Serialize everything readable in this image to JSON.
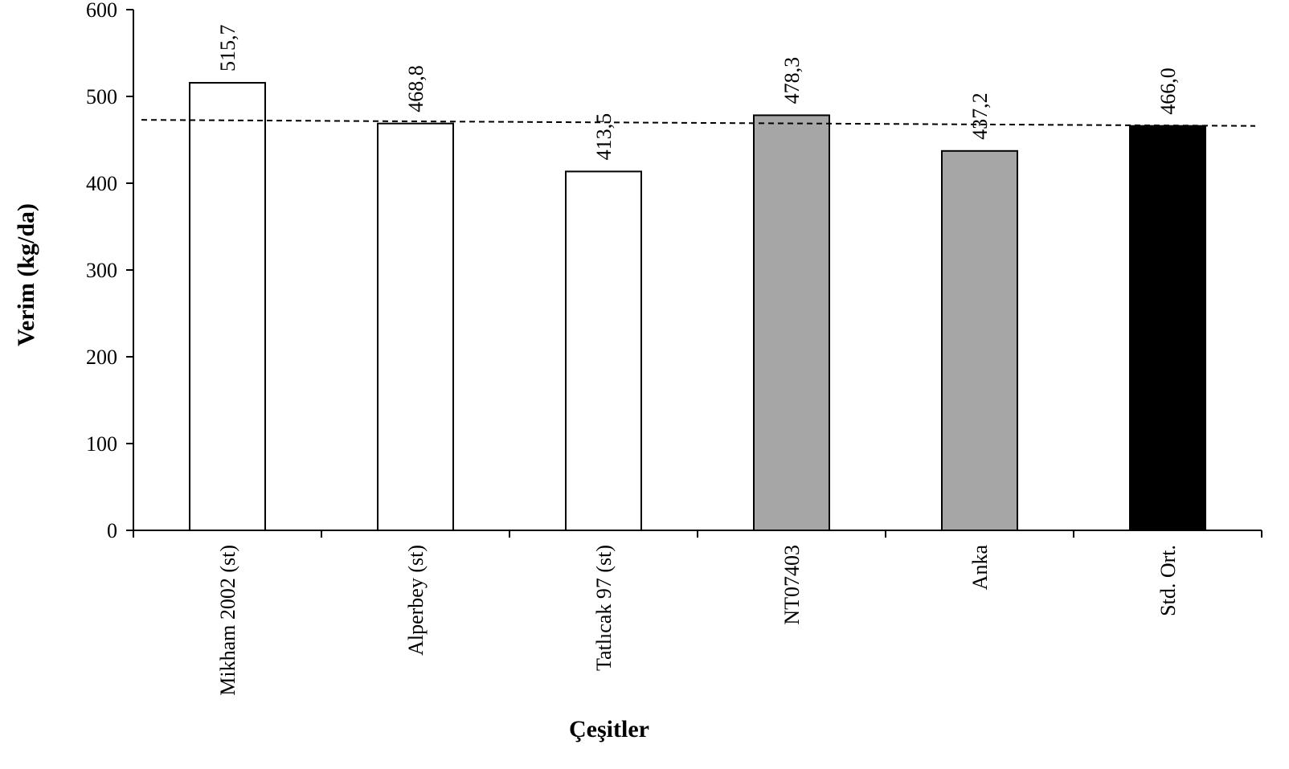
{
  "chart_data": {
    "type": "bar",
    "xlabel": "Çeşitler",
    "ylabel": "Verim (kg/da)",
    "ylim": [
      0,
      600
    ],
    "yticks": [
      "0",
      "100",
      "200",
      "300",
      "400",
      "500",
      "600"
    ],
    "categories": [
      "Mikham 2002 (st)",
      "Alperbey (st)",
      "Tatlıcak 97 (st)",
      "NT07403",
      "Anka",
      "Std. Ort."
    ],
    "values": [
      515.7,
      468.8,
      413.5,
      478.3,
      437.2,
      466.0
    ],
    "value_labels": [
      "515,7",
      "468,8",
      "413,5",
      "478,3",
      "437,2",
      "466,0"
    ],
    "bar_colors": [
      "#ffffff",
      "#ffffff",
      "#ffffff",
      "#a6a6a6",
      "#a6a6a6",
      "#000000"
    ],
    "reference_line": {
      "style": "dashed",
      "y_start": 473,
      "y_end": 466
    },
    "grid": false,
    "legend": "none"
  }
}
